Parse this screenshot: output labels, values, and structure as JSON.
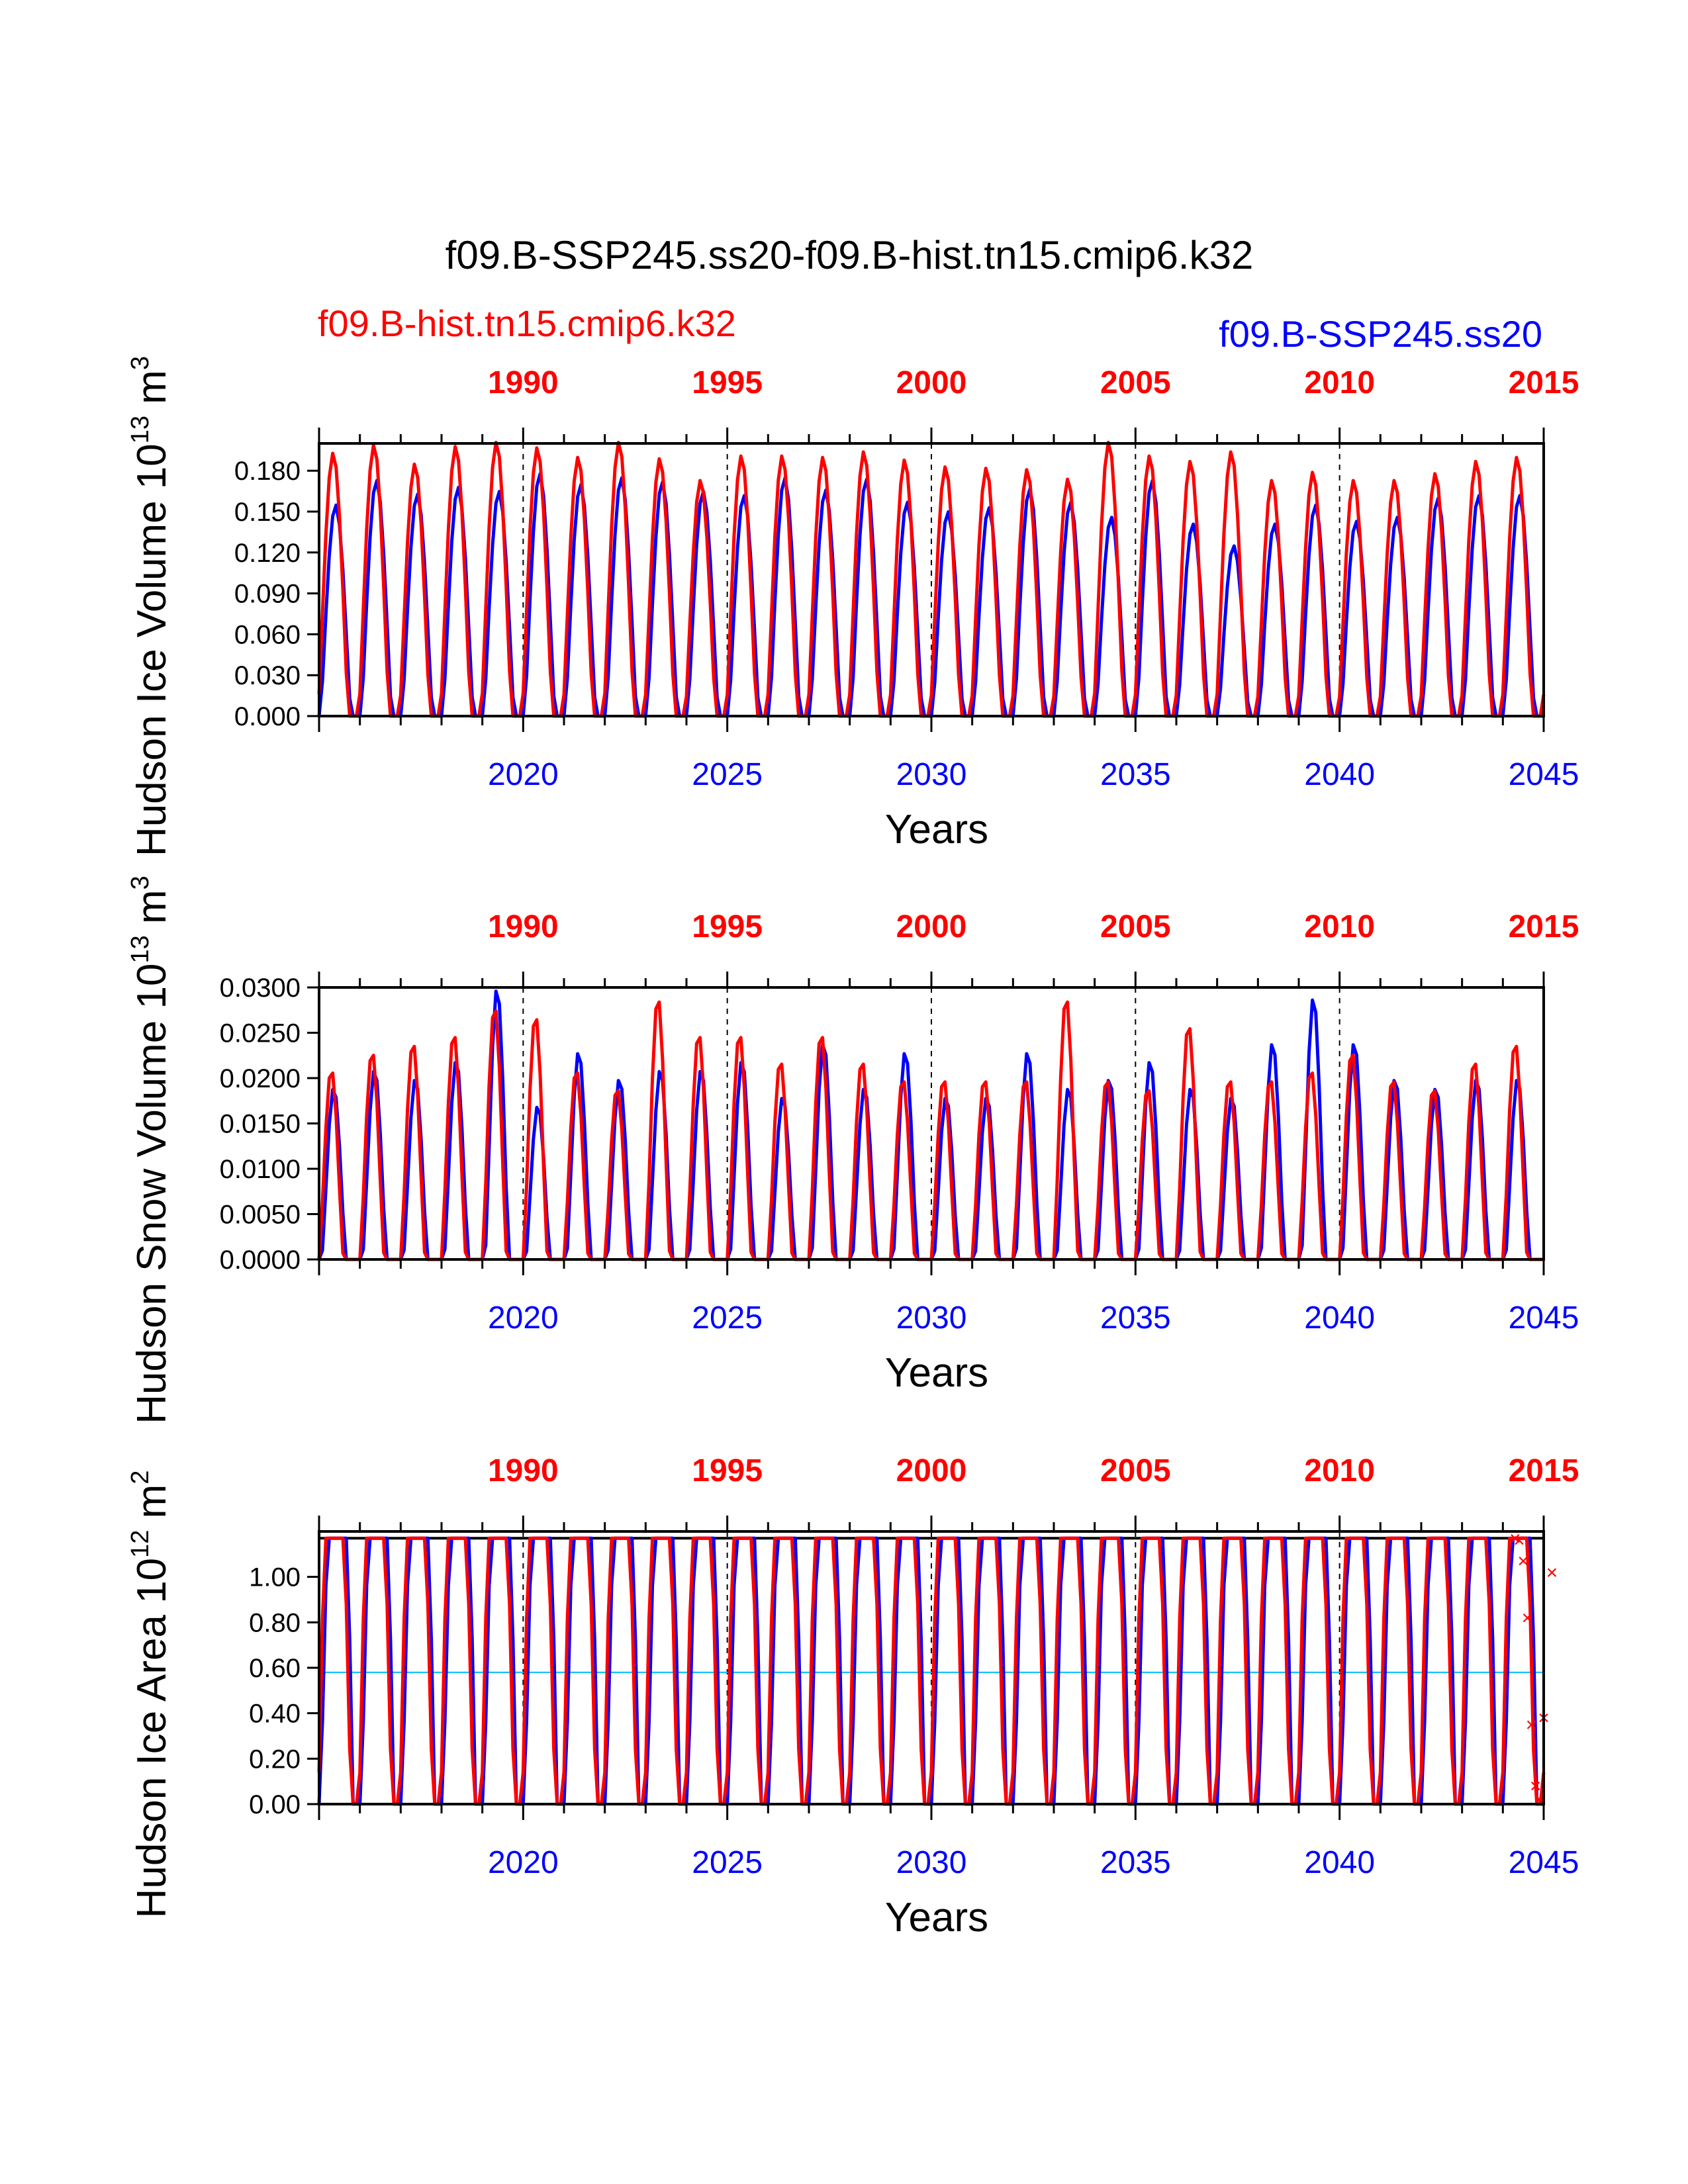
{
  "title": "f09.B-SSP245.ss20-f09.B-hist.tn15.cmip6.k32",
  "legend": {
    "hist_label": "f09.B-hist.tn15.cmip6.k32",
    "ssp_label": "f09.B-SSP245.ss20"
  },
  "colors": {
    "hist": "#ff0000",
    "ssp": "#0000ff",
    "axis": "#000000",
    "refline": "#00bfff"
  },
  "chart_data": [
    {
      "type": "line",
      "ylabel": "Hudson Ice Volume 10",
      "ylabel_exp": "13",
      "ylabel_unit": " m",
      "ylabel_unit_exp": "3",
      "xlabel": "Years",
      "ylim": [
        0,
        0.2
      ],
      "yticks": [
        "0.000",
        "0.030",
        "0.060",
        "0.090",
        "0.120",
        "0.150",
        "0.180"
      ],
      "xlim": [
        2015,
        2045
      ],
      "bottom_ticks": [
        "2020",
        "2025",
        "2030",
        "2035",
        "2040",
        "2045"
      ],
      "top_ticks": [
        "1990",
        "1995",
        "2000",
        "2005",
        "2010",
        "2015"
      ],
      "series": [
        {
          "key": "ssp",
          "peaks": [
            0.155,
            0.173,
            0.163,
            0.168,
            0.165,
            0.178,
            0.17,
            0.175,
            0.172,
            0.165,
            0.162,
            0.175,
            0.166,
            0.174,
            0.157,
            0.15,
            0.153,
            0.167,
            0.157,
            0.146,
            0.173,
            0.141,
            0.125,
            0.141,
            0.155,
            0.143,
            0.146,
            0.16,
            0.162,
            0.162
          ]
        },
        {
          "key": "hist",
          "peaks": [
            0.193,
            0.199,
            0.185,
            0.198,
            0.201,
            0.197,
            0.19,
            0.201,
            0.189,
            0.173,
            0.191,
            0.191,
            0.19,
            0.194,
            0.188,
            0.183,
            0.182,
            0.181,
            0.174,
            0.201,
            0.191,
            0.187,
            0.194,
            0.173,
            0.179,
            0.173,
            0.173,
            0.178,
            0.187,
            0.19
          ]
        }
      ]
    },
    {
      "type": "line",
      "ylabel": "Hudson Snow Volume 10",
      "ylabel_exp": "13",
      "ylabel_unit": " m",
      "ylabel_unit_exp": "3",
      "xlabel": "Years",
      "ylim": [
        0,
        0.03
      ],
      "yticks": [
        "0.0000",
        "0.0050",
        "0.0100",
        "0.0150",
        "0.0200",
        "0.0250",
        "0.0300"
      ],
      "xlim": [
        2015,
        2045
      ],
      "bottom_ticks": [
        "2020",
        "2025",
        "2030",
        "2035",
        "2040",
        "2045"
      ],
      "top_ticks": [
        "1990",
        "1995",
        "2000",
        "2005",
        "2010",
        "2015"
      ],
      "series": [
        {
          "key": "ssp",
          "peaks": [
            0.019,
            0.021,
            0.02,
            0.022,
            0.03,
            0.017,
            0.023,
            0.02,
            0.021,
            0.021,
            0.022,
            0.018,
            0.024,
            0.019,
            0.023,
            0.018,
            0.018,
            0.023,
            0.019,
            0.02,
            0.022,
            0.019,
            0.018,
            0.024,
            0.029,
            0.024,
            0.02,
            0.019,
            0.02,
            0.02
          ]
        },
        {
          "key": "hist",
          "peaks": [
            0.021,
            0.023,
            0.024,
            0.025,
            0.028,
            0.027,
            0.021,
            0.019,
            0.029,
            0.025,
            0.025,
            0.022,
            0.025,
            0.022,
            0.02,
            0.02,
            0.02,
            0.02,
            0.029,
            0.02,
            0.019,
            0.026,
            0.02,
            0.02,
            0.021,
            0.023,
            0.02,
            0.019,
            0.022,
            0.024
          ]
        }
      ]
    },
    {
      "type": "line",
      "ylabel": "Hudson Ice Area 10",
      "ylabel_exp": "12",
      "ylabel_unit": " m",
      "ylabel_unit_exp": "2",
      "xlabel": "Years",
      "ylim": [
        0,
        1.2
      ],
      "yticks": [
        "0.00",
        "0.20",
        "0.40",
        "0.60",
        "0.80",
        "1.00"
      ],
      "xlim": [
        2015,
        2045
      ],
      "bottom_ticks": [
        "2020",
        "2025",
        "2030",
        "2035",
        "2040",
        "2045"
      ],
      "top_ticks": [
        "1990",
        "1995",
        "2000",
        "2005",
        "2010",
        "2015"
      ],
      "reference_lines": [
        0.0,
        0.58,
        1.17
      ],
      "series": [
        {
          "key": "ssp",
          "peaks": [
            1.17
          ]
        },
        {
          "key": "hist",
          "peaks": [
            1.17
          ]
        }
      ],
      "markers": {
        "symbol": "×",
        "points": [
          [
            2044.3,
            1.17
          ],
          [
            2044.4,
            1.16
          ],
          [
            2044.5,
            1.07
          ],
          [
            2044.6,
            0.82
          ],
          [
            2044.7,
            0.35
          ],
          [
            2044.8,
            0.08
          ],
          [
            2044.9,
            0.02
          ],
          [
            2045.0,
            0.38
          ],
          [
            2045.2,
            1.02
          ]
        ]
      }
    }
  ]
}
